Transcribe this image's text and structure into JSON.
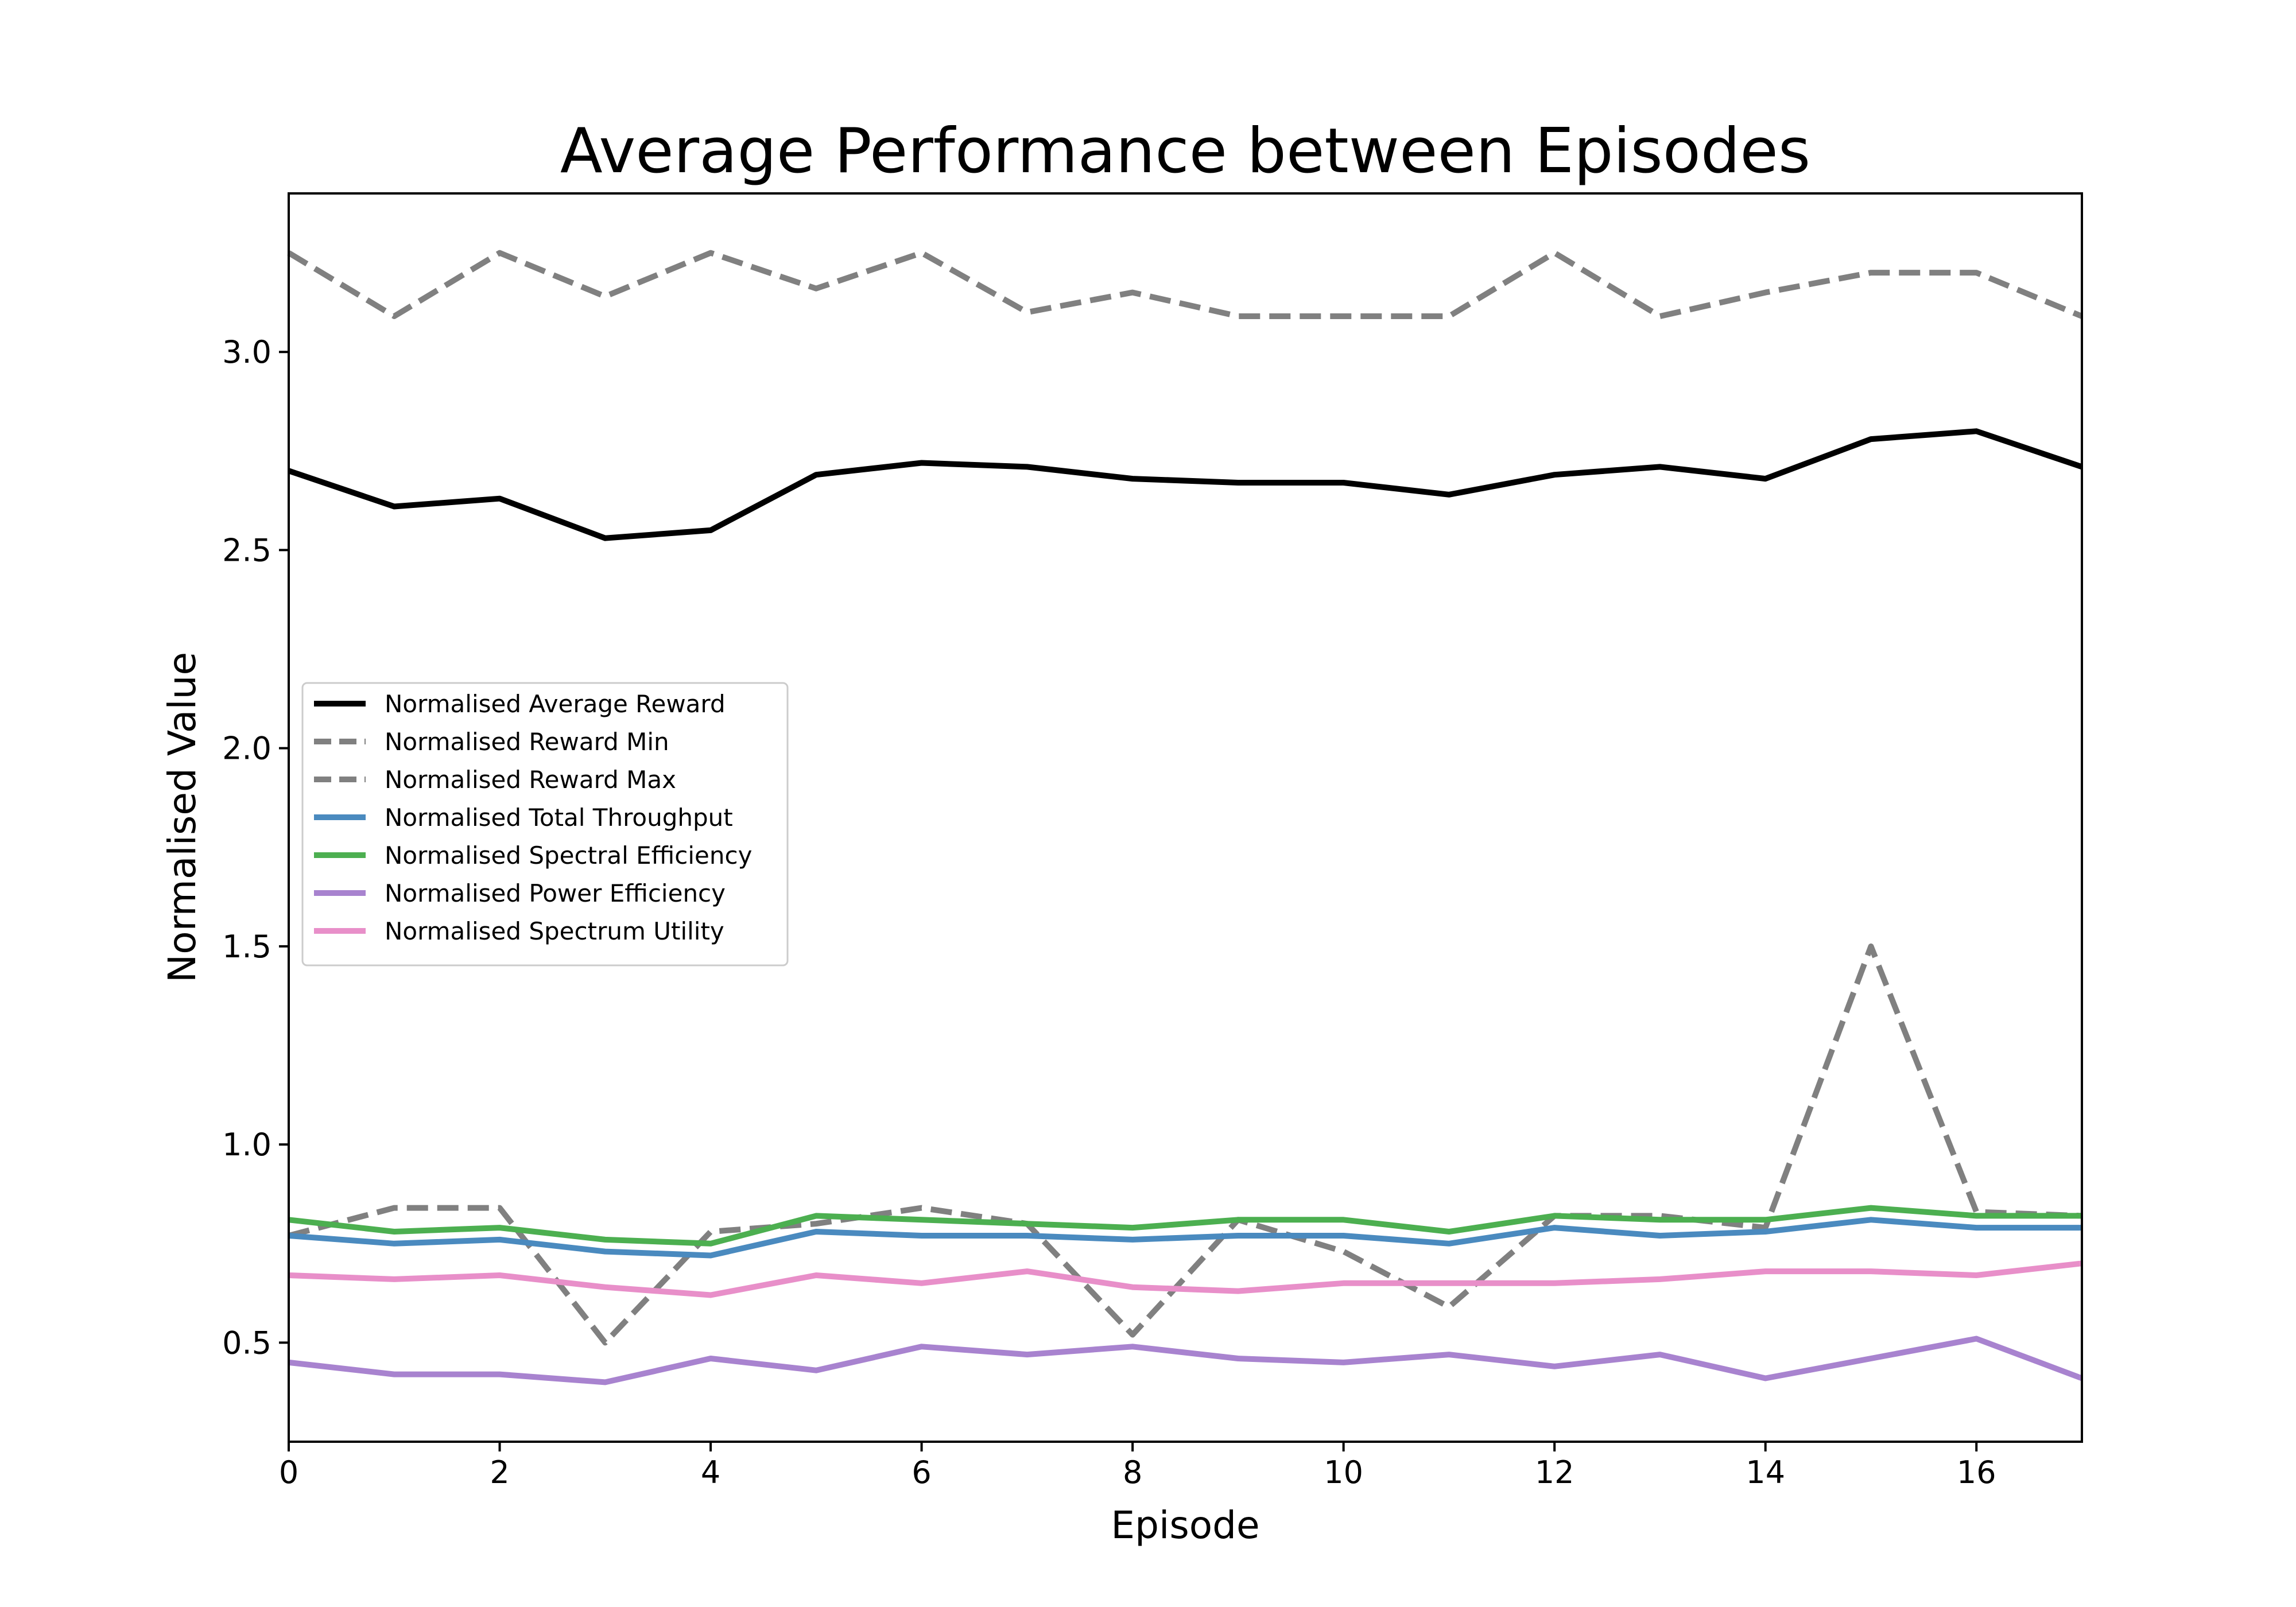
{
  "chart_data": {
    "type": "line",
    "title": "Average Performance between Episodes",
    "xlabel": "Episode",
    "ylabel": "Normalised Value",
    "xlim": [
      0,
      17
    ],
    "ylim": [
      0.25,
      3.4
    ],
    "xticks": [
      0,
      2,
      4,
      6,
      8,
      10,
      12,
      14,
      16
    ],
    "xtick_labels": [
      "0",
      "2",
      "4",
      "6",
      "8",
      "10",
      "12",
      "14",
      "16"
    ],
    "yticks": [
      0.5,
      1.0,
      1.5,
      2.0,
      2.5,
      3.0
    ],
    "ytick_labels": [
      "0.5",
      "1.0",
      "1.5",
      "2.0",
      "2.5",
      "3.0"
    ],
    "grid": false,
    "legend_position": "center-left",
    "x": [
      0,
      1,
      2,
      3,
      4,
      5,
      6,
      7,
      8,
      9,
      10,
      11,
      12,
      13,
      14,
      15,
      16,
      17
    ],
    "series": [
      {
        "name": "Normalised Average Reward",
        "color": "#000000",
        "dash": "solid",
        "values": [
          2.7,
          2.61,
          2.63,
          2.53,
          2.55,
          2.69,
          2.72,
          2.71,
          2.68,
          2.67,
          2.67,
          2.64,
          2.69,
          2.71,
          2.68,
          2.78,
          2.8,
          2.71
        ]
      },
      {
        "name": "Normalised Reward Min",
        "color": "#808080",
        "dash": "dashed",
        "values": [
          0.77,
          0.84,
          0.84,
          0.5,
          0.78,
          0.8,
          0.84,
          0.8,
          0.52,
          0.81,
          0.73,
          0.59,
          0.82,
          0.82,
          0.79,
          1.5,
          0.83,
          0.82
        ]
      },
      {
        "name": "Normalised Reward Max",
        "color": "#808080",
        "dash": "dashed",
        "values": [
          3.25,
          3.09,
          3.25,
          3.14,
          3.25,
          3.16,
          3.25,
          3.1,
          3.15,
          3.09,
          3.09,
          3.09,
          3.25,
          3.09,
          3.15,
          3.2,
          3.2,
          3.09
        ]
      },
      {
        "name": "Normalised Total Throughput",
        "color": "#4a8abf",
        "dash": "solid",
        "values": [
          0.77,
          0.75,
          0.76,
          0.73,
          0.72,
          0.78,
          0.77,
          0.77,
          0.76,
          0.77,
          0.77,
          0.75,
          0.79,
          0.77,
          0.78,
          0.81,
          0.79,
          0.79
        ]
      },
      {
        "name": "Normalised Spectral Efficiency",
        "color": "#4caf50",
        "dash": "solid",
        "values": [
          0.81,
          0.78,
          0.79,
          0.76,
          0.75,
          0.82,
          0.81,
          0.8,
          0.79,
          0.81,
          0.81,
          0.78,
          0.82,
          0.81,
          0.81,
          0.84,
          0.82,
          0.82
        ]
      },
      {
        "name": "Normalised Power Efficiency",
        "color": "#a883cf",
        "dash": "solid",
        "values": [
          0.45,
          0.42,
          0.42,
          0.4,
          0.46,
          0.43,
          0.49,
          0.47,
          0.49,
          0.46,
          0.45,
          0.47,
          0.44,
          0.47,
          0.41,
          0.46,
          0.51,
          0.41
        ]
      },
      {
        "name": "Normalised Spectrum Utility",
        "color": "#e88fc9",
        "dash": "solid",
        "values": [
          0.67,
          0.66,
          0.67,
          0.64,
          0.62,
          0.67,
          0.65,
          0.68,
          0.64,
          0.63,
          0.65,
          0.65,
          0.65,
          0.66,
          0.68,
          0.68,
          0.67,
          0.7
        ]
      }
    ]
  }
}
